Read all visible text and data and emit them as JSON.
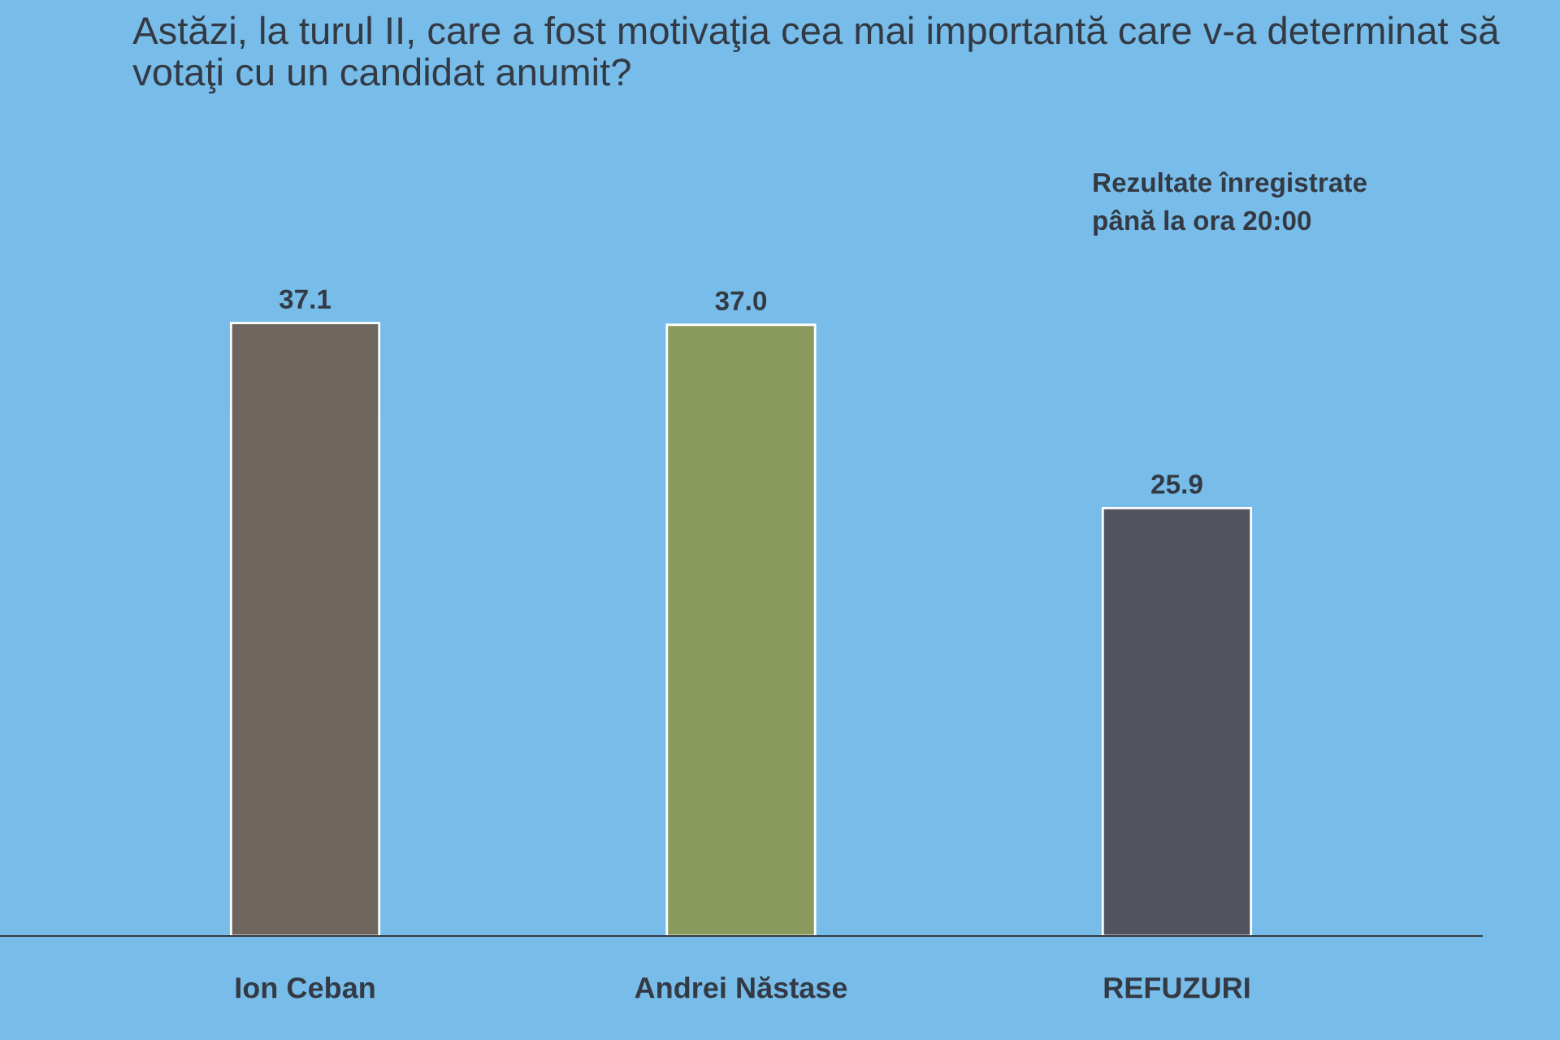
{
  "chart_data": {
    "type": "bar",
    "title": "Astăzi, la turul II, care a fost motivaţia cea mai importantă care v-a determinat să votaţi cu un candidat anumit?",
    "categories": [
      "Ion Ceban",
      "Andrei Năstase",
      "REFUZURI"
    ],
    "values": [
      37.1,
      37.0,
      25.9
    ],
    "colors": [
      "#6e655f",
      "#8a9a5c",
      "#52555e"
    ],
    "data_labels": true,
    "value_labels": [
      "37.1",
      "37.0",
      "25.9"
    ],
    "annotations": [
      "Rezultate înregistrate\npână la ora 20:00"
    ],
    "grid": false,
    "legend": false
  }
}
